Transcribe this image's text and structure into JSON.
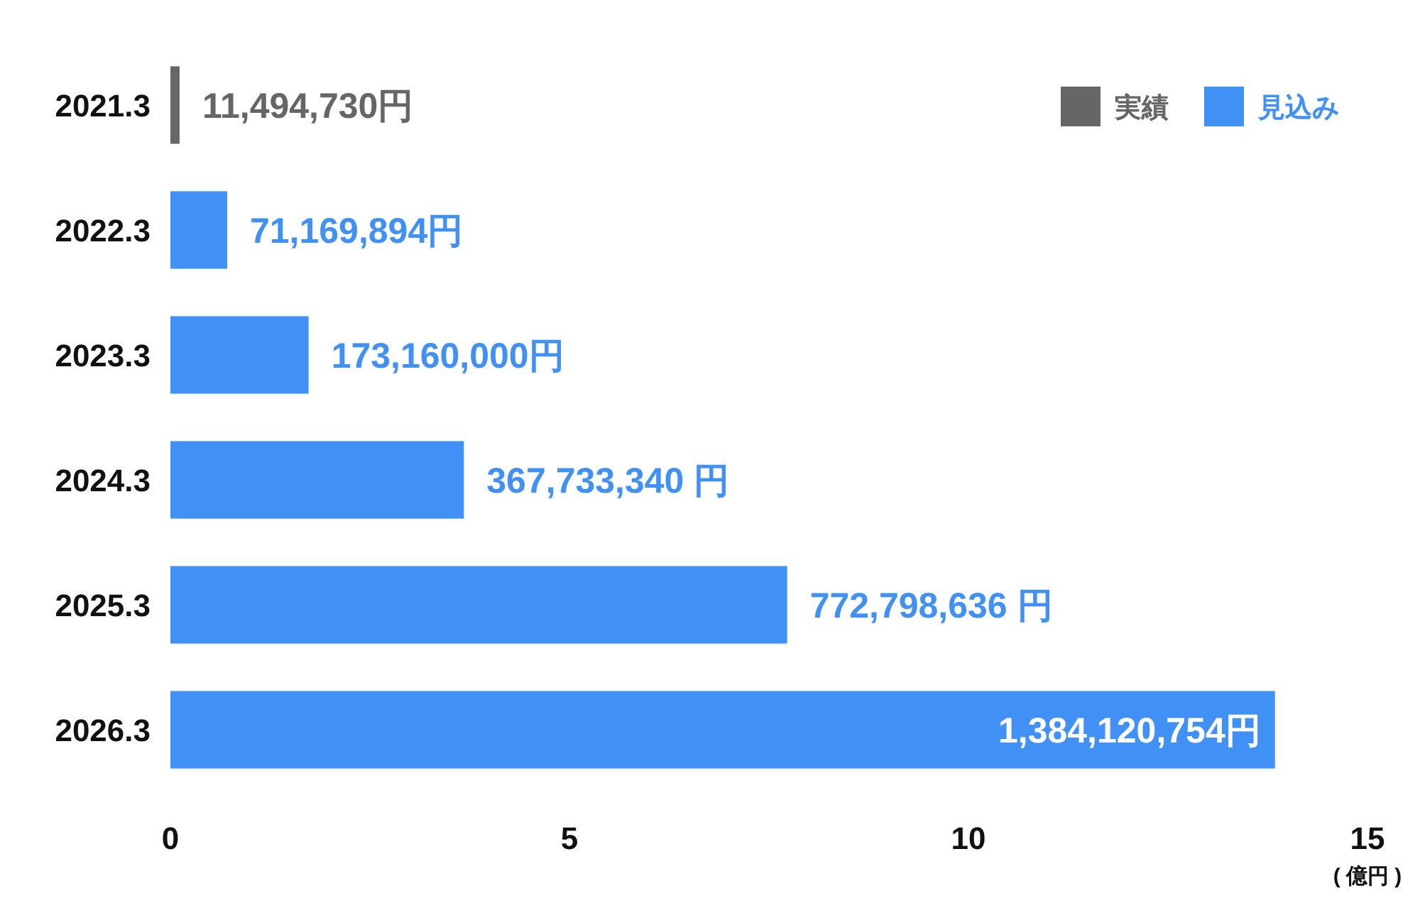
{
  "chart_data": {
    "type": "bar",
    "orientation": "horizontal",
    "xlabel": "( 億円 )",
    "categories": [
      "2021.3",
      "2022.3",
      "2023.3",
      "2024.3",
      "2025.3",
      "2026.3"
    ],
    "series": [
      {
        "name": "実績",
        "color": "#666666",
        "values": [
          0.1149473,
          null,
          null,
          null,
          null,
          null
        ]
      },
      {
        "name": "見込み",
        "color": "#4190f5",
        "values": [
          null,
          0.71169894,
          1.7316,
          3.6773334,
          7.72798636,
          13.84120754
        ]
      }
    ],
    "annotations": [
      {
        "text": "11,494,730円",
        "x": 0.1149473,
        "y": "2021.3"
      },
      {
        "text": "71,169,894円",
        "x": 0.71169894,
        "y": "2022.3"
      },
      {
        "text": "173,160,000円",
        "x": 1.7316,
        "y": "2023.3"
      },
      {
        "text": "367,733,340 円",
        "x": 3.6773334,
        "y": "2024.3"
      },
      {
        "text": "772,798,636 円",
        "x": 7.72798636,
        "y": "2025.3"
      },
      {
        "text": "1,384,120,754円",
        "x": 13.84120754,
        "y": "2026.3"
      }
    ],
    "xlim": [
      0,
      15
    ],
    "xticks": [
      0,
      5,
      10,
      15
    ],
    "grid": false,
    "legend": "top right"
  }
}
